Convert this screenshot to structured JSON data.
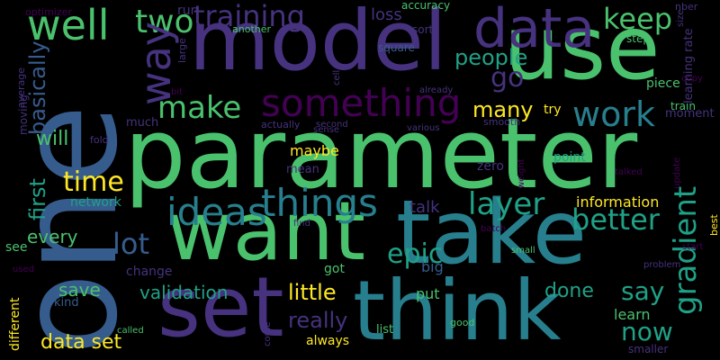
{
  "background": "#000000",
  "palette": {
    "purple": "#440154",
    "indigo": "#46327e",
    "blue": "#365c8d",
    "teal": "#277f8e",
    "cyan": "#1fa187",
    "green": "#4ac16d",
    "lime": "#a0da39",
    "yellow": "#fde725"
  },
  "words": [
    "one",
    "parameter",
    "model",
    "use",
    "want",
    "take",
    "think",
    "set",
    "data",
    "something",
    "well",
    "two",
    "training",
    "keep",
    "way",
    "make",
    "work",
    "go",
    "people",
    "ideas",
    "things",
    "time",
    "gradient",
    "better",
    "layer",
    "lot",
    "first",
    "basically",
    "will",
    "many",
    "epic",
    "say",
    "now",
    "every",
    "validation",
    "little",
    "save",
    "really",
    "data set",
    "done",
    "information",
    "talk",
    "loss",
    "learn",
    "maybe",
    "mean",
    "zero",
    "point",
    "network",
    "see",
    "change",
    "put",
    "big",
    "got",
    "different",
    "kind",
    "always",
    "list",
    "good",
    "called",
    "smaller",
    "come",
    "moving",
    "average",
    "run",
    "another",
    "accuracy",
    "give",
    "optimizer",
    "sort",
    "square",
    "bit",
    "large",
    "cell",
    "already",
    "piece",
    "try",
    "step",
    "train",
    "moment",
    "much",
    "fold",
    "actually",
    "second",
    "various",
    "smooth",
    "sense",
    "weight",
    "update",
    "talked",
    "copy",
    "size",
    "nber",
    "learning rate",
    "best",
    "start",
    "problem",
    "batch",
    "small",
    "find",
    "used"
  ]
}
